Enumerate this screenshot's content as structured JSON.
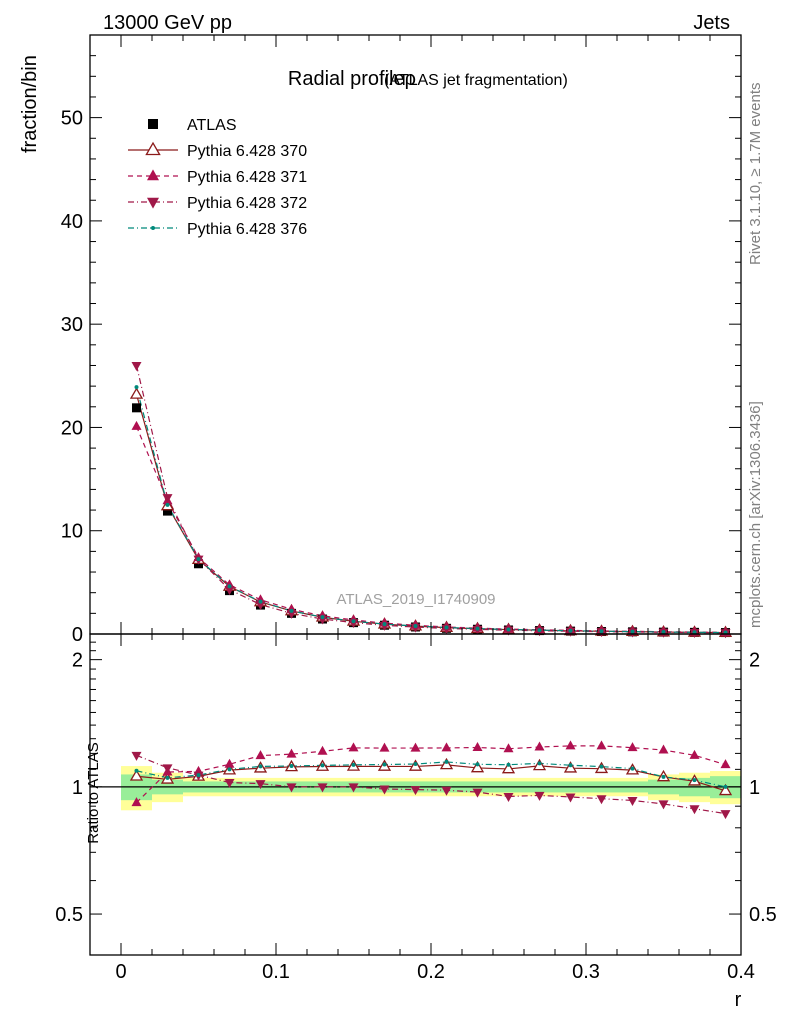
{
  "header": {
    "left": "13000 GeV pp",
    "right": "Jets"
  },
  "side_labels": {
    "rivet": "Rivet 3.1.10, ≥ 1.7M events",
    "mcplots": "mcplots.cern.ch [arXiv:1306.3436]"
  },
  "chart_data": {
    "type": "scatter",
    "title": "Radial profileρ",
    "subtitle": "(ATLAS jet fragmentation)",
    "watermark": "ATLAS_2019_I1740909",
    "xlabel": "r",
    "ylabel": "fraction/bin",
    "ratio_ylabel": "Ratio to ATLAS",
    "xlim": [
      -0.02,
      0.4
    ],
    "ylim": [
      0,
      58
    ],
    "ratio_ylim": [
      0.4,
      2.3
    ],
    "x_ticks": [
      "0",
      "0.1",
      "0.2",
      "0.3",
      "0.4"
    ],
    "x_tick_values": [
      0,
      0.1,
      0.2,
      0.3,
      0.4
    ],
    "y_ticks": [
      "0",
      "10",
      "20",
      "30",
      "40",
      "50"
    ],
    "y_tick_values": [
      0,
      10,
      20,
      30,
      40,
      50
    ],
    "ratio_y_ticks": [
      "0.5",
      "1",
      "2"
    ],
    "ratio_y_tick_values": [
      0.5,
      1,
      2
    ],
    "x": [
      0.01,
      0.03,
      0.05,
      0.07,
      0.09,
      0.11,
      0.13,
      0.15,
      0.17,
      0.19,
      0.21,
      0.23,
      0.25,
      0.27,
      0.29,
      0.31,
      0.33,
      0.35,
      0.37,
      0.39
    ],
    "data": {
      "name": "ATLAS",
      "values": [
        21.9,
        11.9,
        6.8,
        4.2,
        2.8,
        2.0,
        1.45,
        1.1,
        0.85,
        0.68,
        0.55,
        0.46,
        0.39,
        0.33,
        0.28,
        0.24,
        0.21,
        0.18,
        0.16,
        0.14
      ],
      "band_inner": [
        0.07,
        0.04,
        0.03,
        0.03,
        0.03,
        0.03,
        0.03,
        0.03,
        0.03,
        0.03,
        0.03,
        0.03,
        0.03,
        0.03,
        0.03,
        0.03,
        0.03,
        0.04,
        0.05,
        0.06
      ],
      "band_outer": [
        0.12,
        0.08,
        0.05,
        0.05,
        0.05,
        0.05,
        0.05,
        0.05,
        0.05,
        0.05,
        0.05,
        0.05,
        0.05,
        0.05,
        0.05,
        0.05,
        0.05,
        0.07,
        0.08,
        0.09
      ]
    },
    "series": [
      {
        "name": "Pythia 6.428 370",
        "color": "#8b1a1a",
        "marker": "triangle-up-open",
        "line": "solid",
        "values": [
          23.2,
          12.4,
          7.2,
          4.6,
          3.1,
          2.23,
          1.62,
          1.23,
          0.95,
          0.76,
          0.62,
          0.51,
          0.43,
          0.37,
          0.31,
          0.265,
          0.23,
          0.19,
          0.165,
          0.137
        ]
      },
      {
        "name": "Pythia 6.428 371",
        "color": "#b01050",
        "marker": "triangle-up-filled",
        "line": "dashed",
        "values": [
          20.1,
          12.9,
          7.4,
          4.75,
          3.32,
          2.39,
          1.76,
          1.36,
          1.05,
          0.84,
          0.68,
          0.57,
          0.48,
          0.41,
          0.35,
          0.3,
          0.26,
          0.22,
          0.19,
          0.158
        ]
      },
      {
        "name": "Pythia 6.428 372",
        "color": "#a01848",
        "marker": "triangle-down-filled",
        "line": "dashdot",
        "values": [
          26.0,
          13.2,
          7.25,
          4.3,
          2.85,
          2.0,
          1.45,
          1.1,
          0.84,
          0.67,
          0.54,
          0.447,
          0.37,
          0.315,
          0.265,
          0.225,
          0.195,
          0.164,
          0.142,
          0.121
        ]
      },
      {
        "name": "Pythia 6.428 376",
        "color": "#00897b",
        "marker": "dot",
        "line": "dashdot",
        "values": [
          23.9,
          12.5,
          7.25,
          4.62,
          3.13,
          2.24,
          1.63,
          1.24,
          0.96,
          0.77,
          0.63,
          0.52,
          0.44,
          0.375,
          0.315,
          0.268,
          0.232,
          0.19,
          0.166,
          0.14
        ]
      }
    ],
    "legend_placement": "top-left",
    "grid": false
  }
}
